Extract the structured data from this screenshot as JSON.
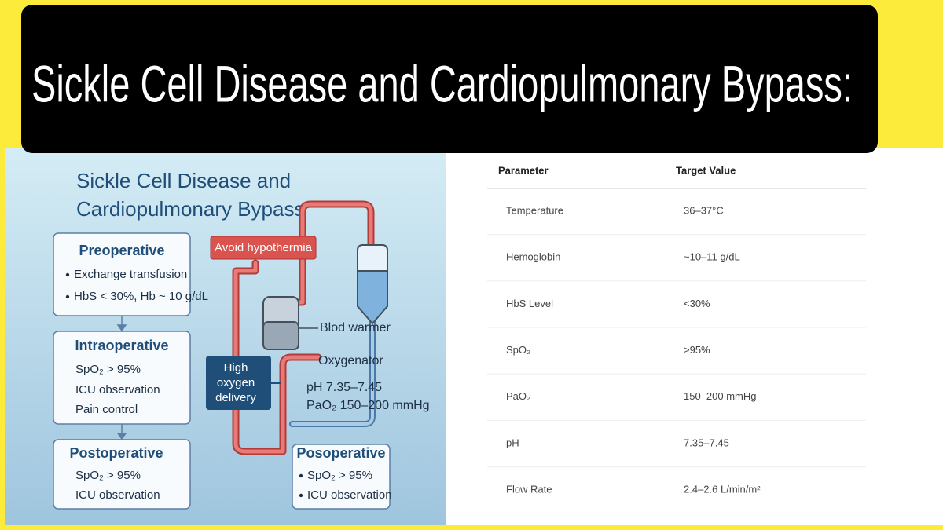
{
  "header": {
    "title": "Sickle Cell Disease and Cardiopulmonary Bypass:"
  },
  "infographic": {
    "title_lines": [
      "Sickle Cell Disease and",
      "Cardiopulmonary Bypass"
    ],
    "stages": [
      {
        "heading": "Preoperative",
        "items": [
          "Exchange transfusion",
          "HbS < 30%, Hb ~ 10 g/dL"
        ]
      },
      {
        "heading": "Intraoperative",
        "items": [
          "SpO₂ > 95%",
          "ICU observation",
          "Pain control"
        ]
      },
      {
        "heading": "Postoperative",
        "items": [
          "SpO₂ > 95%",
          "ICU observation"
        ]
      }
    ],
    "circuit": {
      "warning": "Avoid hypothermia",
      "warmer": "Blod warmer",
      "oxygenator": "Oxygenator",
      "delivery_lines": [
        "High",
        "oxygen",
        "delivery"
      ],
      "targets": [
        "pH 7.35–7.45",
        "PaO₂ 150–200 mmHg"
      ],
      "post_box": {
        "heading": "Posoperative",
        "items": [
          "SpO₂ > 95%",
          "ICU observation"
        ]
      }
    }
  },
  "table": {
    "columns": [
      "Parameter",
      "Target Value"
    ],
    "rows": [
      [
        "Temperature",
        "36–37°C"
      ],
      [
        "Hemoglobin",
        "~10–11 g/dL"
      ],
      [
        "HbS Level",
        "<30%"
      ],
      [
        "SpO₂",
        ">95%"
      ],
      [
        "PaO₂",
        "150–200 mmHg"
      ],
      [
        "pH",
        "7.35–7.45"
      ],
      [
        "Flow Rate",
        "2.4–2.6 L/min/m²"
      ]
    ]
  }
}
